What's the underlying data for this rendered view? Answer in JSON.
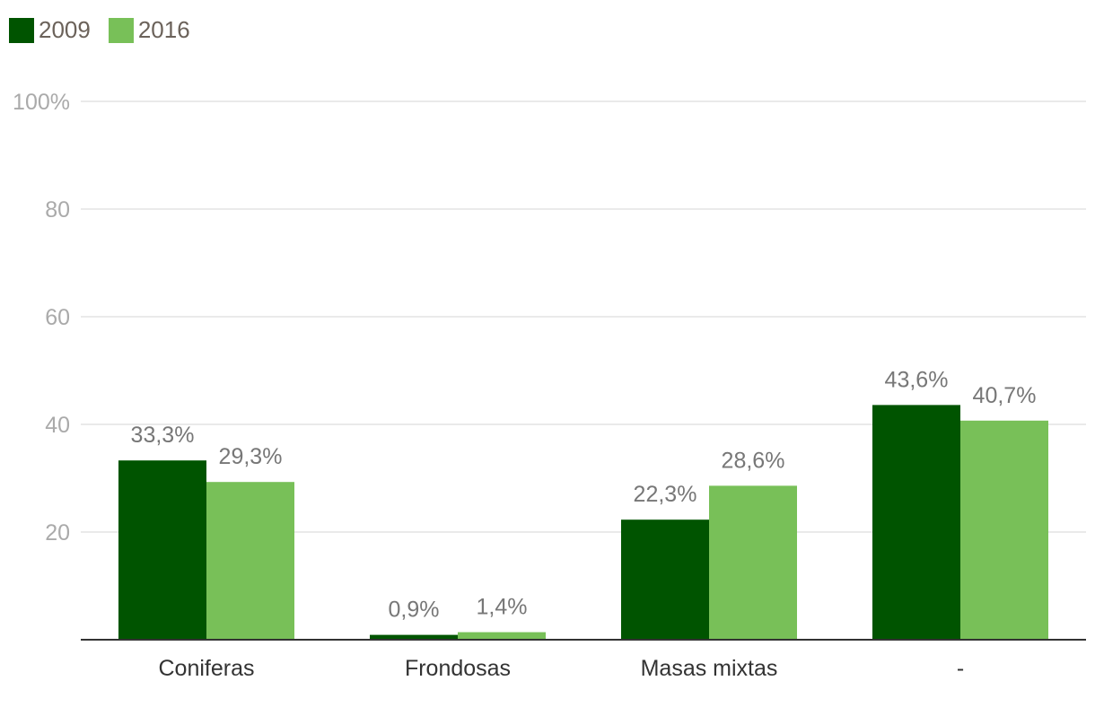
{
  "legend": [
    {
      "label": "2009",
      "color": "#005400"
    },
    {
      "label": "2016",
      "color": "#78c058"
    }
  ],
  "chart_data": {
    "type": "bar",
    "categories": [
      "Coniferas",
      "Frondosas",
      "Masas mixtas",
      "-"
    ],
    "series": [
      {
        "name": "2009",
        "color": "#005400",
        "values": [
          33.3,
          0.9,
          22.3,
          43.6
        ],
        "labels": [
          "33,3%",
          "0,9%",
          "22,3%",
          "43,6%"
        ]
      },
      {
        "name": "2016",
        "color": "#78c058",
        "values": [
          29.3,
          1.4,
          28.6,
          40.7
        ],
        "labels": [
          "29,3%",
          "1,4%",
          "28,6%",
          "40,7%"
        ]
      }
    ],
    "yticks": [
      {
        "value": 20,
        "label": "20"
      },
      {
        "value": 40,
        "label": "40"
      },
      {
        "value": 60,
        "label": "60"
      },
      {
        "value": 80,
        "label": "80"
      },
      {
        "value": 100,
        "label": "100%"
      }
    ],
    "ylim": [
      0,
      100
    ],
    "grid": true,
    "legend_position": "top-left",
    "title": "",
    "xlabel": "",
    "ylabel": ""
  }
}
